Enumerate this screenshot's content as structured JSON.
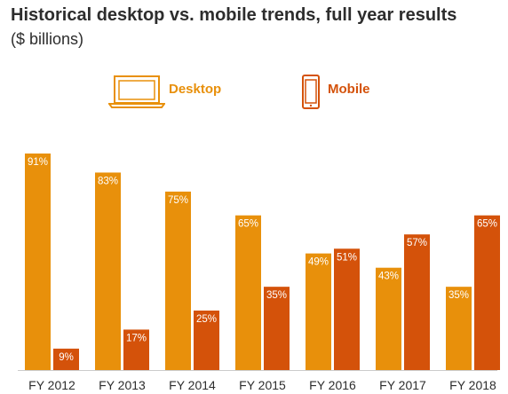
{
  "title": "Historical desktop vs. mobile trends, full year results",
  "subtitle": "($ billions)",
  "legend": {
    "desktop": {
      "label": "Desktop",
      "icon": "laptop-icon",
      "color": "#E8900B"
    },
    "mobile": {
      "label": "Mobile",
      "icon": "smartphone-icon",
      "color": "#D4520A"
    }
  },
  "chart_data": {
    "type": "bar",
    "title": "Historical desktop vs. mobile trends, full year results",
    "subtitle": "($ billions)",
    "categories": [
      "FY 2012",
      "FY 2013",
      "FY 2014",
      "FY 2015",
      "FY 2016",
      "FY 2017",
      "FY 2018"
    ],
    "series": [
      {
        "name": "Desktop",
        "color": "#E8900B",
        "values": [
          91,
          83,
          75,
          65,
          49,
          43,
          35
        ],
        "labels": [
          "91%",
          "83%",
          "75%",
          "65%",
          "49%",
          "43%",
          "35%"
        ]
      },
      {
        "name": "Mobile",
        "color": "#D4520A",
        "values": [
          9,
          17,
          25,
          35,
          51,
          57,
          65
        ],
        "labels": [
          "9%",
          "17%",
          "25%",
          "35%",
          "51%",
          "57%",
          "65%"
        ]
      }
    ],
    "ylim": [
      0,
      91
    ],
    "xlabel": "",
    "ylabel": "",
    "grid": false,
    "legend_position": "top"
  }
}
